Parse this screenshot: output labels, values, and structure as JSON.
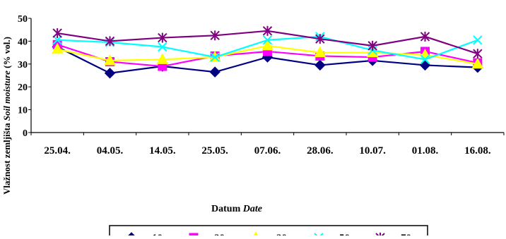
{
  "chart_data": {
    "type": "line",
    "categories": [
      "25.04.",
      "04.05.",
      "14.05.",
      "25.05.",
      "07.06.",
      "28.06.",
      "10.07.",
      "01.08.",
      "16.08."
    ],
    "ylim": [
      0,
      50
    ],
    "yticks": [
      "0",
      "10",
      "20",
      "30",
      "40",
      "50"
    ],
    "ylabel": "Vlažnost zemljišta",
    "ylabel_italic": "Soil moisture",
    "ylabel_unit": "(% vol.)",
    "xlabel": "Datum",
    "xlabel_italic": "Date",
    "grid": false,
    "legend_position": "bottom",
    "series": [
      {
        "name": "10",
        "color": "#000080",
        "marker": "diamond",
        "values": [
          37.5,
          26,
          29,
          26.5,
          33,
          29.5,
          31.5,
          29.5,
          28.5
        ]
      },
      {
        "name": "20",
        "color": "#ff00ff",
        "marker": "square",
        "values": [
          38.5,
          31,
          29,
          33.5,
          35.5,
          33.5,
          33,
          35.5,
          30.5
        ]
      },
      {
        "name": "30",
        "color": "#ffff00",
        "marker": "triangle",
        "values": [
          36.5,
          31.5,
          32,
          33,
          38,
          35,
          35,
          34,
          30
        ]
      },
      {
        "name": "50",
        "color": "#00ffff",
        "marker": "x",
        "values": [
          40.5,
          39.5,
          37.5,
          33,
          40.5,
          42,
          36,
          32,
          40.5
        ]
      },
      {
        "name": "70",
        "color": "#800080",
        "marker": "star",
        "values": [
          43.5,
          40,
          41.5,
          42.5,
          44.5,
          41,
          38,
          42,
          34.5
        ]
      }
    ]
  }
}
